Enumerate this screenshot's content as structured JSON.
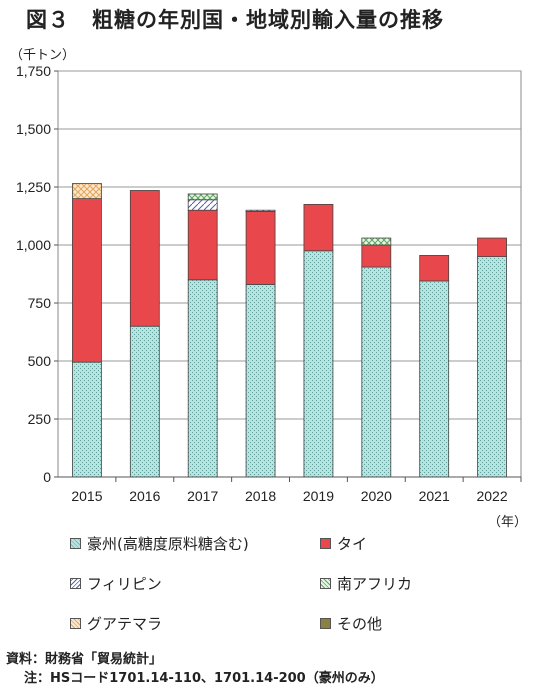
{
  "title": {
    "fig": "図３",
    "text": "粗糖の年別国・地域別輸入量の推移"
  },
  "unit_label": "（千トン）",
  "x_unit_label": "（年）",
  "notes": {
    "source": "資料：財務省「貿易統計」",
    "note": "注：HSコード1701.14-110、1701.14-200（豪州のみ）"
  },
  "colors": {
    "australia": "#b9e3e0",
    "thailand": "#e8484b",
    "philippines": "#5560b0",
    "south_africa": "#8fd18f",
    "guatemala": "#f2c990",
    "other": "#8a8040"
  },
  "chart_data": {
    "type": "bar",
    "stacked": true,
    "categories": [
      "2015",
      "2016",
      "2017",
      "2018",
      "2019",
      "2020",
      "2021",
      "2022"
    ],
    "ylim": [
      0,
      1750
    ],
    "yticks": [
      "0",
      "250",
      "500",
      "750",
      "1,000",
      "1,250",
      "1,500",
      "1,750"
    ],
    "ytick_values": [
      0,
      250,
      500,
      750,
      1000,
      1250,
      1500,
      1750
    ],
    "grid": true,
    "legend_position": "bottom",
    "series": [
      {
        "key": "australia",
        "name": "豪州(高糖度原料糖含む)",
        "values": [
          495,
          650,
          850,
          830,
          975,
          905,
          845,
          950
        ]
      },
      {
        "key": "thailand",
        "name": "タイ",
        "values": [
          705,
          585,
          300,
          315,
          200,
          95,
          110,
          80
        ]
      },
      {
        "key": "philippines",
        "name": "フィリピン",
        "values": [
          0,
          0,
          45,
          5,
          0,
          0,
          0,
          0
        ]
      },
      {
        "key": "south_africa",
        "name": "南アフリカ",
        "values": [
          0,
          0,
          25,
          0,
          0,
          30,
          0,
          0
        ]
      },
      {
        "key": "guatemala",
        "name": "グアテマラ",
        "values": [
          65,
          0,
          0,
          0,
          0,
          0,
          0,
          0
        ]
      },
      {
        "key": "other",
        "name": "その他",
        "values": [
          0,
          0,
          0,
          0,
          0,
          0,
          0,
          0
        ]
      }
    ]
  }
}
